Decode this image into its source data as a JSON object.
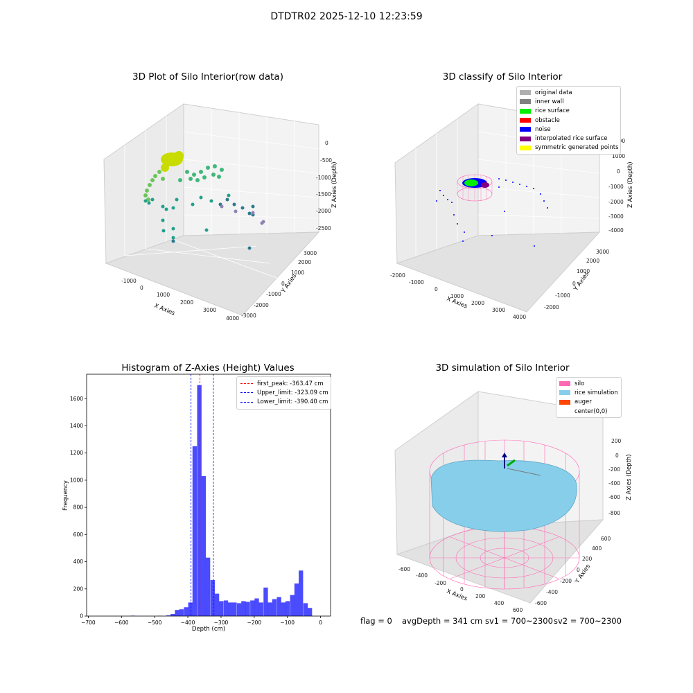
{
  "suptitle": "DTDTR02 2025-12-10 12:23:59",
  "panels": {
    "raw": {
      "title": "3D Plot of Silo Interior(row data)",
      "xlabel": "X Axies",
      "ylabel": "Y Axies",
      "zlabel": "Z Axies (Depth)",
      "xticks": [
        "-1000",
        "0",
        "1000",
        "2000",
        "3000",
        "4000"
      ],
      "yticks": [
        "-3000",
        "-2000",
        "-1000",
        "0",
        "1000",
        "2000",
        "3000"
      ],
      "zticks": [
        "0",
        "-500",
        "-1000",
        "-1500",
        "-2000",
        "-2500"
      ]
    },
    "classify": {
      "title": "3D classify of Silo Interior",
      "xlabel": "X Axies",
      "ylabel": "Y Axies",
      "zlabel": "Z Axies (Depth)",
      "xticks": [
        "-2000",
        "-1000",
        "0",
        "1000",
        "2000",
        "3000",
        "4000"
      ],
      "yticks": [
        "-2000",
        "-1000",
        "0",
        "1000",
        "2000",
        "3000"
      ],
      "zticks": [
        "2000",
        "1000",
        "0",
        "-1000",
        "-2000",
        "-3000",
        "-4000"
      ],
      "legend": [
        {
          "label": "original data",
          "color": "#b0b0b0"
        },
        {
          "label": "inner wall",
          "color": "#808080"
        },
        {
          "label": "rice surface",
          "color": "#00ee00"
        },
        {
          "label": "obstacle",
          "color": "#ff0000"
        },
        {
          "label": "noise",
          "color": "#0000ff"
        },
        {
          "label": "interpolated rice surface",
          "color": "#800080"
        },
        {
          "label": "symmetric generated points",
          "color": "#ffff00"
        }
      ]
    },
    "simulation": {
      "title": "3D simulation of Silo Interior",
      "xlabel": "X Axies",
      "ylabel": "Y Axies",
      "zlabel": "Z Axies (Depth)",
      "xticks": [
        "-600",
        "-400",
        "-200",
        "0",
        "200",
        "400",
        "600"
      ],
      "yticks": [
        "-600",
        "-400",
        "-200",
        "0",
        "200",
        "400",
        "600"
      ],
      "zticks": [
        "200",
        "0",
        "-200",
        "-400",
        "-600",
        "-800"
      ],
      "legend": [
        {
          "label": "silo",
          "color": "#ff69b4"
        },
        {
          "label": "rice simulation",
          "color": "#87ceeb"
        },
        {
          "label": "auger",
          "color": "#ff4500"
        },
        {
          "label": "center(0,0)",
          "color": "#ffffff"
        }
      ]
    }
  },
  "chart_data": [
    {
      "type": "bar",
      "title": "Histogram of Z-Axies (Height) Values",
      "xlabel": "Depth (cm)",
      "ylabel": "Frequency",
      "xlim": [
        -705,
        30
      ],
      "ylim": [
        0,
        1780
      ],
      "xticks": [
        -700,
        -600,
        -500,
        -400,
        -300,
        -200,
        -100,
        0
      ],
      "yticks": [
        0,
        200,
        400,
        600,
        800,
        1000,
        1200,
        1400,
        1600
      ],
      "bin_width": 13.3,
      "bin_left_edges": [
        -572,
        -492,
        -465,
        -452,
        -439,
        -426,
        -412,
        -399,
        -386,
        -372,
        -359,
        -346,
        -332,
        -319,
        -306,
        -292,
        -279,
        -266,
        -252,
        -239,
        -226,
        -212,
        -199,
        -186,
        -172,
        -159,
        -146,
        -132,
        -119,
        -106,
        -92,
        -79,
        -66,
        -52,
        -39,
        -26,
        -12
      ],
      "values": [
        3,
        2,
        5,
        15,
        45,
        50,
        65,
        100,
        1250,
        1700,
        1030,
        430,
        265,
        165,
        110,
        115,
        100,
        100,
        95,
        110,
        105,
        115,
        130,
        100,
        210,
        100,
        125,
        140,
        100,
        110,
        155,
        240,
        335,
        95,
        60,
        0,
        0
      ],
      "color": "#0000ff",
      "vlines": [
        {
          "name": "first_peak: -363.47 cm",
          "x": -363.47,
          "color": "#ff0000"
        },
        {
          "name": "Upper_limit: -323.09 cm",
          "x": -323.09,
          "color": "#0000ff"
        },
        {
          "name": "Lower_limit: -390.40 cm",
          "x": -390.4,
          "color": "#0000ff"
        }
      ],
      "legend_position": "top-right",
      "grid": false
    }
  ],
  "status": {
    "flag": "flag = 0",
    "avg_depth": "avgDepth = 341 cm",
    "sv1": "sv1 = 700~2300",
    "sv2": "sv2 = 700~2300"
  }
}
